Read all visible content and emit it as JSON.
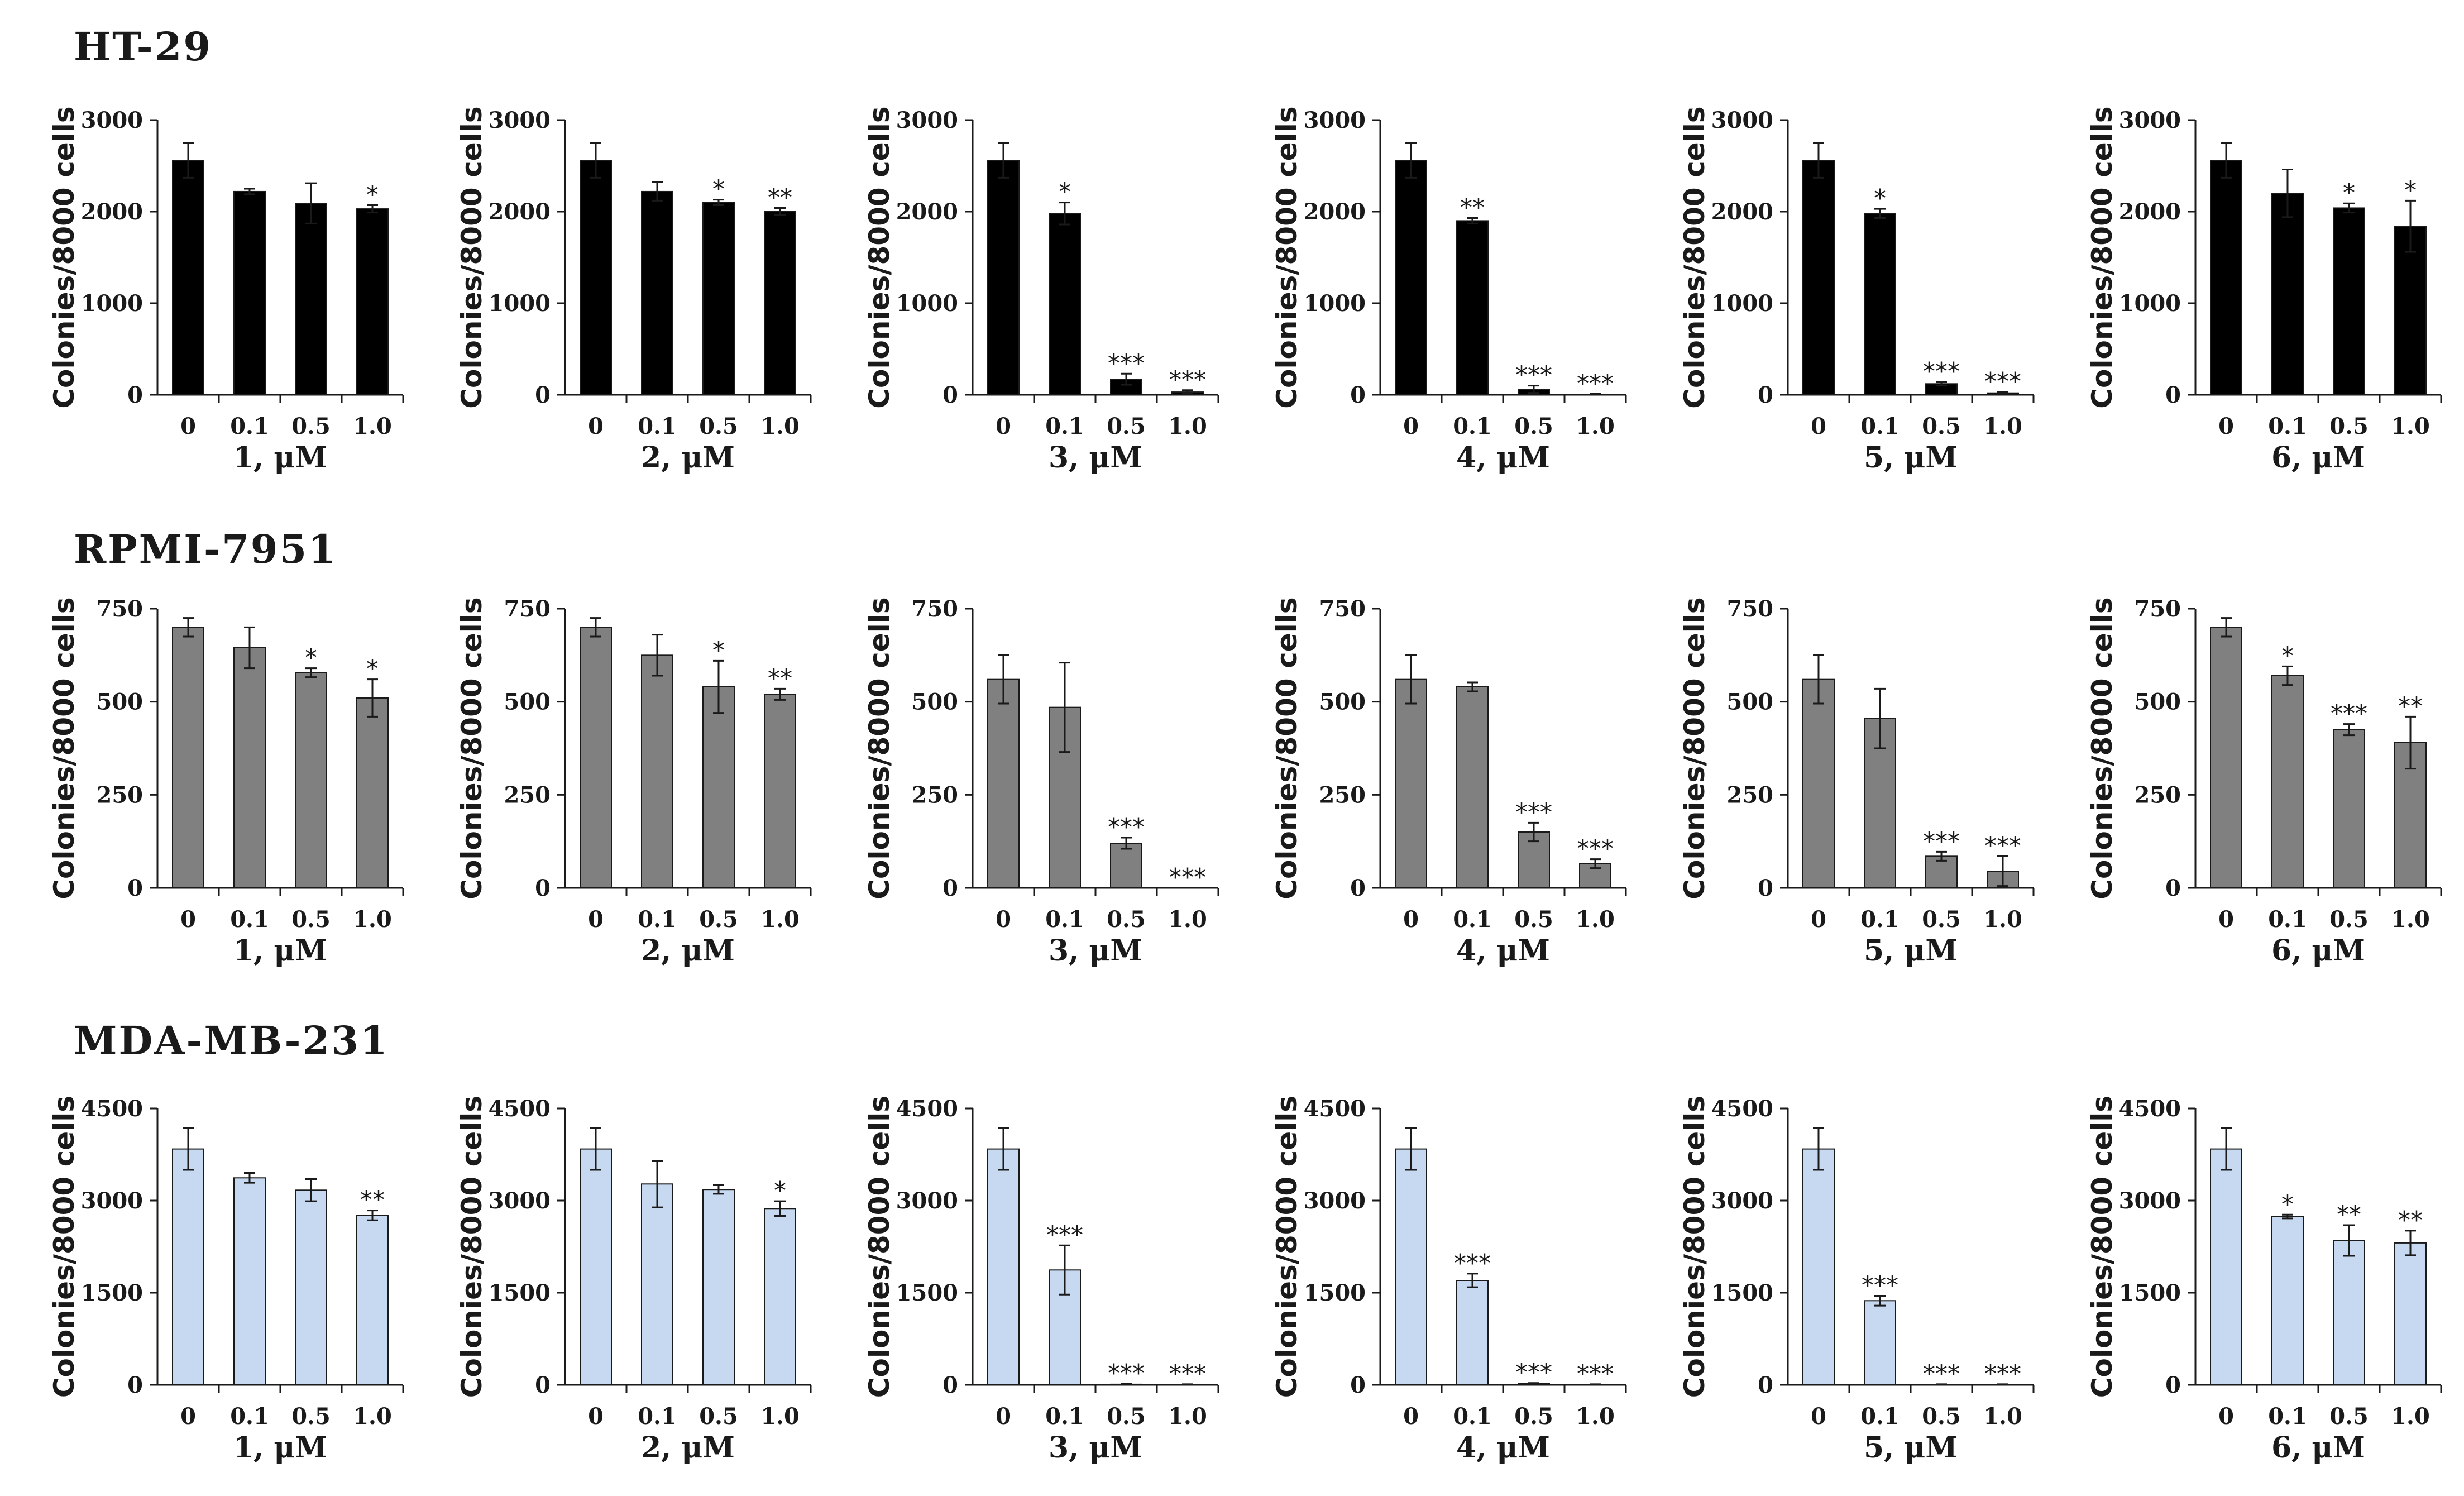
{
  "figure": {
    "rows": [
      {
        "label": "HT-29",
        "bar_color": "#000000"
      },
      {
        "label": "RPMI-7951",
        "bar_color": "#808080"
      },
      {
        "label": "MDA-MB-231",
        "bar_color": "#c6d9f1"
      }
    ]
  },
  "chart_data": [
    {
      "type": "bar",
      "title": "",
      "row": "HT-29",
      "xlabel": "1, μM",
      "ylabel": "Colonies/8000 cells",
      "categories": [
        "0",
        "0.1",
        "0.5",
        "1.0"
      ],
      "values": [
        2560,
        2220,
        2090,
        2030
      ],
      "errors": [
        190,
        30,
        220,
        40
      ],
      "significance": [
        "",
        "",
        "",
        "*"
      ],
      "ylim": [
        0,
        3000
      ],
      "yticks": [
        0,
        1000,
        2000,
        3000
      ]
    },
    {
      "type": "bar",
      "title": "",
      "row": "HT-29",
      "xlabel": "2, μM",
      "ylabel": "Colonies/8000 cells",
      "categories": [
        "0",
        "0.1",
        "0.5",
        "1.0"
      ],
      "values": [
        2560,
        2220,
        2100,
        2000
      ],
      "errors": [
        190,
        100,
        30,
        40
      ],
      "significance": [
        "",
        "",
        "*",
        "**"
      ],
      "ylim": [
        0,
        3000
      ],
      "yticks": [
        0,
        1000,
        2000,
        3000
      ]
    },
    {
      "type": "bar",
      "title": "",
      "row": "HT-29",
      "xlabel": "3, μM",
      "ylabel": "Colonies/8000 cells",
      "categories": [
        "0",
        "0.1",
        "0.5",
        "1.0"
      ],
      "values": [
        2560,
        1980,
        170,
        30
      ],
      "errors": [
        190,
        120,
        60,
        20
      ],
      "significance": [
        "",
        "*",
        "***",
        "***"
      ],
      "ylim": [
        0,
        3000
      ],
      "yticks": [
        0,
        1000,
        2000,
        3000
      ]
    },
    {
      "type": "bar",
      "title": "",
      "row": "HT-29",
      "xlabel": "4, μM",
      "ylabel": "Colonies/8000 cells",
      "categories": [
        "0",
        "0.1",
        "0.5",
        "1.0"
      ],
      "values": [
        2560,
        1900,
        60,
        5
      ],
      "errors": [
        190,
        30,
        40,
        5
      ],
      "significance": [
        "",
        "**",
        "***",
        "***"
      ],
      "ylim": [
        0,
        3000
      ],
      "yticks": [
        0,
        1000,
        2000,
        3000
      ]
    },
    {
      "type": "bar",
      "title": "",
      "row": "HT-29",
      "xlabel": "5, μM",
      "ylabel": "Colonies/8000 cells",
      "categories": [
        "0",
        "0.1",
        "0.5",
        "1.0"
      ],
      "values": [
        2560,
        1980,
        120,
        20
      ],
      "errors": [
        190,
        50,
        20,
        10
      ],
      "significance": [
        "",
        "*",
        "***",
        "***"
      ],
      "ylim": [
        0,
        3000
      ],
      "yticks": [
        0,
        1000,
        2000,
        3000
      ]
    },
    {
      "type": "bar",
      "title": "",
      "row": "HT-29",
      "xlabel": "6, μM",
      "ylabel": "Colonies/8000 cells",
      "categories": [
        "0",
        "0.1",
        "0.5",
        "1.0"
      ],
      "values": [
        2560,
        2200,
        2040,
        1840
      ],
      "errors": [
        190,
        260,
        50,
        280
      ],
      "significance": [
        "",
        "",
        "*",
        "*"
      ],
      "ylim": [
        0,
        3000
      ],
      "yticks": [
        0,
        1000,
        2000,
        3000
      ]
    },
    {
      "type": "bar",
      "title": "",
      "row": "RPMI-7951",
      "xlabel": "1, μM",
      "ylabel": "Colonies/8000 cells",
      "categories": [
        "0",
        "0.1",
        "0.5",
        "1.0"
      ],
      "values": [
        700,
        645,
        578,
        510
      ],
      "errors": [
        25,
        55,
        12,
        50
      ],
      "significance": [
        "",
        "",
        "*",
        "*"
      ],
      "ylim": [
        0,
        750
      ],
      "yticks": [
        0,
        250,
        500,
        750
      ]
    },
    {
      "type": "bar",
      "title": "",
      "row": "RPMI-7951",
      "xlabel": "2, μM",
      "ylabel": "Colonies/8000 cells",
      "categories": [
        "0",
        "0.1",
        "0.5",
        "1.0"
      ],
      "values": [
        700,
        625,
        540,
        520
      ],
      "errors": [
        25,
        55,
        70,
        15
      ],
      "significance": [
        "",
        "",
        "*",
        "**"
      ],
      "ylim": [
        0,
        750
      ],
      "yticks": [
        0,
        250,
        500,
        750
      ]
    },
    {
      "type": "bar",
      "title": "",
      "row": "RPMI-7951",
      "xlabel": "3, μM",
      "ylabel": "Colonies/8000 cells",
      "categories": [
        "0",
        "0.1",
        "0.5",
        "1.0"
      ],
      "values": [
        560,
        485,
        120,
        0
      ],
      "errors": [
        65,
        120,
        15,
        0
      ],
      "significance": [
        "",
        "",
        "***",
        "***"
      ],
      "ylim": [
        0,
        750
      ],
      "yticks": [
        0,
        250,
        500,
        750
      ]
    },
    {
      "type": "bar",
      "title": "",
      "row": "RPMI-7951",
      "xlabel": "4, μM",
      "ylabel": "Colonies/8000 cells",
      "categories": [
        "0",
        "0.1",
        "0.5",
        "1.0"
      ],
      "values": [
        560,
        540,
        150,
        65
      ],
      "errors": [
        65,
        12,
        25,
        12
      ],
      "significance": [
        "",
        "",
        "***",
        "***"
      ],
      "ylim": [
        0,
        750
      ],
      "yticks": [
        0,
        250,
        500,
        750
      ]
    },
    {
      "type": "bar",
      "title": "",
      "row": "RPMI-7951",
      "xlabel": "5, μM",
      "ylabel": "Colonies/8000 cells",
      "categories": [
        "0",
        "0.1",
        "0.5",
        "1.0"
      ],
      "values": [
        560,
        455,
        85,
        45
      ],
      "errors": [
        65,
        80,
        12,
        40
      ],
      "significance": [
        "",
        "",
        "***",
        "***"
      ],
      "ylim": [
        0,
        750
      ],
      "yticks": [
        0,
        250,
        500,
        750
      ]
    },
    {
      "type": "bar",
      "title": "",
      "row": "RPMI-7951",
      "xlabel": "6, μM",
      "ylabel": "Colonies/8000 cells",
      "categories": [
        "0",
        "0.1",
        "0.5",
        "1.0"
      ],
      "values": [
        700,
        570,
        425,
        390
      ],
      "errors": [
        25,
        25,
        15,
        70
      ],
      "significance": [
        "",
        "*",
        "***",
        "**"
      ],
      "ylim": [
        0,
        750
      ],
      "yticks": [
        0,
        250,
        500,
        750
      ]
    },
    {
      "type": "bar",
      "title": "",
      "row": "MDA-MB-231",
      "xlabel": "1, μM",
      "ylabel": "Colonies/8000 cells",
      "categories": [
        "0",
        "0.1",
        "0.5",
        "1.0"
      ],
      "values": [
        3840,
        3370,
        3170,
        2760
      ],
      "errors": [
        340,
        80,
        180,
        80
      ],
      "significance": [
        "",
        "",
        "",
        "**"
      ],
      "ylim": [
        0,
        4500
      ],
      "yticks": [
        0,
        1500,
        3000,
        4500
      ]
    },
    {
      "type": "bar",
      "title": "",
      "row": "MDA-MB-231",
      "xlabel": "2, μM",
      "ylabel": "Colonies/8000 cells",
      "categories": [
        "0",
        "0.1",
        "0.5",
        "1.0"
      ],
      "values": [
        3840,
        3270,
        3180,
        2870
      ],
      "errors": [
        340,
        380,
        70,
        120
      ],
      "significance": [
        "",
        "",
        "",
        "*"
      ],
      "ylim": [
        0,
        4500
      ],
      "yticks": [
        0,
        1500,
        3000,
        4500
      ]
    },
    {
      "type": "bar",
      "title": "",
      "row": "MDA-MB-231",
      "xlabel": "3, μM",
      "ylabel": "Colonies/8000 cells",
      "categories": [
        "0",
        "0.1",
        "0.5",
        "1.0"
      ],
      "values": [
        3840,
        1870,
        10,
        5
      ],
      "errors": [
        340,
        400,
        10,
        5
      ],
      "significance": [
        "",
        "***",
        "***",
        "***"
      ],
      "ylim": [
        0,
        4500
      ],
      "yticks": [
        0,
        1500,
        3000,
        4500
      ]
    },
    {
      "type": "bar",
      "title": "",
      "row": "MDA-MB-231",
      "xlabel": "4, μM",
      "ylabel": "Colonies/8000 cells",
      "categories": [
        "0",
        "0.1",
        "0.5",
        "1.0"
      ],
      "values": [
        3840,
        1700,
        20,
        5
      ],
      "errors": [
        340,
        110,
        10,
        5
      ],
      "significance": [
        "",
        "***",
        "***",
        "***"
      ],
      "ylim": [
        0,
        4500
      ],
      "yticks": [
        0,
        1500,
        3000,
        4500
      ]
    },
    {
      "type": "bar",
      "title": "",
      "row": "MDA-MB-231",
      "xlabel": "5, μM",
      "ylabel": "Colonies/8000 cells",
      "categories": [
        "0",
        "0.1",
        "0.5",
        "1.0"
      ],
      "values": [
        3840,
        1370,
        5,
        5
      ],
      "errors": [
        340,
        80,
        5,
        5
      ],
      "significance": [
        "",
        "***",
        "***",
        "***"
      ],
      "ylim": [
        0,
        4500
      ],
      "yticks": [
        0,
        1500,
        3000,
        4500
      ]
    },
    {
      "type": "bar",
      "title": "",
      "row": "MDA-MB-231",
      "xlabel": "6, μM",
      "ylabel": "Colonies/8000 cells",
      "categories": [
        "0",
        "0.1",
        "0.5",
        "1.0"
      ],
      "values": [
        3840,
        2740,
        2350,
        2310
      ],
      "errors": [
        340,
        30,
        250,
        200
      ],
      "significance": [
        "",
        "*",
        "**",
        "**"
      ],
      "ylim": [
        0,
        4500
      ],
      "yticks": [
        0,
        1500,
        3000,
        4500
      ]
    }
  ]
}
